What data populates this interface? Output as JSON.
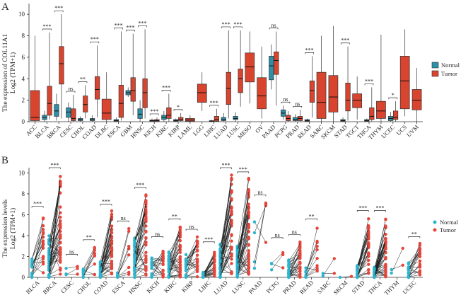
{
  "colors": {
    "normal": "#2e8fa6",
    "tumor": "#d9442f",
    "normal_dot": "#2bb5cf",
    "tumor_dot": "#e5453a"
  },
  "chart_data": [
    {
      "panel_label": "A",
      "type": "box",
      "ylabel_line1": "The expression of COL11A1",
      "ylabel_line2": "Log2 (TPM+1)",
      "ylim": [
        0,
        11
      ],
      "yticks": [
        0,
        2,
        4,
        6,
        8,
        10
      ],
      "legend": {
        "position": "right",
        "entries": [
          "Normal",
          "Tumor"
        ]
      },
      "categories": [
        {
          "name": "ACC",
          "sig": "",
          "t": [
            0,
            0.1,
            0.4,
            2.9,
            8.0
          ]
        },
        {
          "name": "BLCA",
          "sig": "***",
          "n": [
            0,
            0.2,
            0.4,
            0.6,
            1.0
          ],
          "t": [
            0.2,
            0.6,
            1.7,
            3.3,
            8.3
          ]
        },
        {
          "name": "BRCA",
          "sig": "***",
          "n": [
            0.1,
            0.5,
            1.0,
            1.6,
            2.6
          ],
          "t": [
            0.3,
            3.5,
            5.4,
            7.0,
            10.0
          ]
        },
        {
          "name": "CESC",
          "sig": "ns",
          "n": [
            0,
            0.4,
            0.9,
            1.3,
            1.8
          ],
          "t": [
            0,
            0.1,
            0.3,
            1.2,
            2.5
          ]
        },
        {
          "name": "CHOL",
          "sig": "**",
          "n": [
            0,
            0.1,
            0.2,
            0.3,
            0.5
          ],
          "t": [
            0.3,
            0.9,
            1.6,
            2.4,
            3.4
          ]
        },
        {
          "name": "COAD",
          "sig": "***",
          "n": [
            0,
            0.1,
            0.2,
            0.3,
            0.6
          ],
          "t": [
            0.4,
            2.1,
            3.0,
            4.2,
            7.1
          ]
        },
        {
          "name": "DLBC",
          "sig": "",
          "t": [
            0,
            0.2,
            0.8,
            2.1,
            4.6
          ]
        },
        {
          "name": "ESCA",
          "sig": "***",
          "n": [
            0,
            0.05,
            0.1,
            0.2,
            0.4
          ],
          "t": [
            0.1,
            0.4,
            1.7,
            3.4,
            8.4
          ]
        },
        {
          "name": "GBM",
          "sig": "***",
          "n": [
            2.3,
            2.5,
            2.7,
            2.9,
            3.2
          ],
          "t": [
            0.6,
            1.9,
            2.9,
            4.1,
            8.2
          ]
        },
        {
          "name": "HNSC",
          "sig": "***",
          "n": [
            0,
            0.3,
            0.7,
            1.2,
            2.0
          ],
          "t": [
            0.3,
            1.3,
            2.7,
            4.0,
            8.6
          ]
        },
        {
          "name": "KICH",
          "sig": "***",
          "n": [
            0,
            0.05,
            0.1,
            0.15,
            0.3
          ],
          "t": [
            0,
            0.05,
            0.1,
            0.2,
            0.4
          ]
        },
        {
          "name": "KIRC",
          "sig": "***",
          "n": [
            0,
            0.2,
            0.4,
            0.6,
            1.0
          ],
          "t": [
            0,
            0.3,
            0.6,
            1.3,
            2.6
          ]
        },
        {
          "name": "KIRP",
          "sig": "*",
          "n": [
            0,
            0.05,
            0.1,
            0.2,
            0.3
          ],
          "t": [
            0,
            0.1,
            0.2,
            0.4,
            0.8
          ]
        },
        {
          "name": "LAML",
          "sig": "",
          "t": [
            0,
            0.05,
            0.15,
            0.3,
            0.6
          ]
        },
        {
          "name": "LGG",
          "sig": "",
          "t": [
            1.0,
            1.8,
            2.7,
            3.5,
            4.6
          ]
        },
        {
          "name": "LIHC",
          "sig": "***",
          "n": [
            0,
            0.02,
            0.05,
            0.1,
            0.2
          ],
          "t": [
            0,
            0.05,
            0.2,
            0.5,
            1.2
          ]
        },
        {
          "name": "LUAD",
          "sig": "***",
          "n": [
            0,
            0.1,
            0.2,
            0.4,
            0.8
          ],
          "t": [
            0.3,
            1.6,
            3.1,
            4.6,
            8.5
          ]
        },
        {
          "name": "LUSC",
          "sig": "***",
          "n": [
            0,
            0.2,
            0.3,
            0.5,
            0.9
          ],
          "t": [
            1.4,
            2.7,
            4.0,
            4.9,
            8.5
          ]
        },
        {
          "name": "MESO",
          "sig": "",
          "t": [
            1.7,
            3.7,
            5.1,
            6.4,
            8.4
          ]
        },
        {
          "name": "OV",
          "sig": "",
          "t": [
            0.3,
            1.2,
            2.4,
            4.1,
            7.0
          ]
        },
        {
          "name": "PAAD",
          "sig": "ns",
          "n": [
            3.0,
            3.9,
            5.2,
            6.1,
            7.2
          ],
          "t": [
            1.5,
            4.4,
            5.7,
            6.5,
            8.4
          ]
        },
        {
          "name": "PCPG",
          "sig": "ns",
          "n": [
            0.2,
            0.5,
            0.8,
            1.1,
            1.5
          ],
          "t": [
            0,
            0.1,
            0.3,
            0.6,
            1.0
          ]
        },
        {
          "name": "PRAD",
          "sig": "ns",
          "n": [
            0,
            0.1,
            0.2,
            0.4,
            0.7
          ],
          "t": [
            0,
            0.1,
            0.3,
            0.5,
            1.1
          ]
        },
        {
          "name": "READ",
          "sig": "***",
          "n": [
            0,
            0.05,
            0.1,
            0.2,
            0.3
          ],
          "t": [
            0.4,
            1.8,
            2.9,
            3.8,
            6.1
          ]
        },
        {
          "name": "SARC",
          "sig": "",
          "t": [
            0,
            0.3,
            1.8,
            4.6,
            8.0
          ]
        },
        {
          "name": "SKCM",
          "sig": "",
          "t": [
            0,
            0.9,
            2.3,
            4.3,
            8.9
          ]
        },
        {
          "name": "STAD",
          "sig": "***",
          "n": [
            0,
            0.05,
            0.1,
            0.2,
            0.4
          ],
          "t": [
            0.1,
            1.0,
            2.0,
            3.6,
            7.0
          ]
        },
        {
          "name": "TGCT",
          "sig": "",
          "t": [
            0.2,
            1.3,
            2.0,
            2.6,
            4.2
          ]
        },
        {
          "name": "THCA",
          "sig": "***",
          "n": [
            0,
            0.05,
            0.1,
            0.2,
            0.3
          ],
          "t": [
            0,
            0.2,
            0.5,
            1.3,
            3.2
          ]
        },
        {
          "name": "THYM",
          "sig": "",
          "t": [
            0,
            0.3,
            1.0,
            1.9,
            8.1
          ]
        },
        {
          "name": "UCEC",
          "sig": "*",
          "n": [
            0,
            0.1,
            0.3,
            0.5,
            0.9
          ],
          "t": [
            0,
            0.2,
            0.4,
            1.0,
            1.9
          ]
        },
        {
          "name": "UCS",
          "sig": "",
          "t": [
            0.5,
            1.2,
            3.8,
            6.1,
            8.6
          ]
        },
        {
          "name": "UVM",
          "sig": "",
          "t": [
            0,
            1.1,
            2.0,
            3.0,
            5.0
          ]
        }
      ]
    },
    {
      "panel_label": "B",
      "type": "paired_scatter",
      "ylabel_line1": "The expression levels",
      "ylabel_line2": "Log2 (TPM+1)",
      "ylim": [
        0,
        10.5
      ],
      "yticks": [
        0,
        2,
        4,
        6,
        8,
        10
      ],
      "legend": {
        "position": "right",
        "entries": [
          "Normal",
          "Tumor"
        ]
      },
      "categories": [
        {
          "name": "BLCA",
          "sig": "***",
          "count": 18,
          "n": [
            0,
            0.5,
            2.0
          ],
          "t": [
            0.2,
            2.0,
            6.2
          ]
        },
        {
          "name": "BRCA",
          "sig": "***",
          "count": 45,
          "n": [
            0,
            1.5,
            4.0
          ],
          "t": [
            0.3,
            4.8,
            10.0
          ]
        },
        {
          "name": "CESC",
          "sig": "ns",
          "count": 3,
          "n": [
            0.1,
            0.8,
            2.0
          ],
          "t": [
            0,
            0.5,
            1.6
          ]
        },
        {
          "name": "CHOL",
          "sig": "**",
          "count": 9,
          "n": [
            0,
            0.3,
            0.8
          ],
          "t": [
            0.2,
            1.5,
            3.0
          ]
        },
        {
          "name": "COAD",
          "sig": "***",
          "count": 40,
          "n": [
            0,
            0.3,
            1.5
          ],
          "t": [
            0.3,
            3.2,
            6.4
          ]
        },
        {
          "name": "ESCA",
          "sig": "ns",
          "count": 8,
          "n": [
            0,
            0.2,
            0.6
          ],
          "t": [
            0,
            0.2,
            4.8
          ]
        },
        {
          "name": "HNSC",
          "sig": "***",
          "count": 40,
          "n": [
            0,
            1.2,
            3.8
          ],
          "t": [
            0.2,
            3.0,
            8.0
          ]
        },
        {
          "name": "KICH",
          "sig": "ns",
          "count": 20,
          "n": [
            0,
            0.6,
            2.0
          ],
          "t": [
            0,
            0.4,
            3.3
          ]
        },
        {
          "name": "KIRC",
          "sig": "**",
          "count": 35,
          "n": [
            0,
            0.8,
            2.6
          ],
          "t": [
            0,
            1.4,
            5.0
          ]
        },
        {
          "name": "KIRP",
          "sig": "ns",
          "count": 25,
          "n": [
            0,
            0.5,
            2.2
          ],
          "t": [
            0,
            0.8,
            4.0
          ]
        },
        {
          "name": "LIHC",
          "sig": "***",
          "count": 30,
          "n": [
            0,
            0.1,
            0.5
          ],
          "t": [
            0,
            0.8,
            2.8
          ]
        },
        {
          "name": "LUAD",
          "sig": "***",
          "count": 45,
          "n": [
            0,
            1.0,
            3.2
          ],
          "t": [
            0.2,
            4.0,
            10.0
          ]
        },
        {
          "name": "LUSC",
          "sig": "***",
          "count": 45,
          "n": [
            0,
            1.0,
            3.0
          ],
          "t": [
            0.3,
            4.2,
            9.5
          ]
        },
        {
          "name": "PAAD",
          "sig": "ns",
          "count": 4,
          "n": [
            0.2,
            5.0,
            6.8
          ],
          "t": [
            1.0,
            6.5,
            7.3
          ]
        },
        {
          "name": "PCPG",
          "sig": "ns",
          "count": 3,
          "n": [
            0.2,
            0.8,
            1.5
          ],
          "t": [
            0.5,
            1.5,
            3.2
          ]
        },
        {
          "name": "PRAD",
          "sig": "ns",
          "count": 30,
          "n": [
            0,
            0.4,
            1.8
          ],
          "t": [
            0,
            0.6,
            3.5
          ]
        },
        {
          "name": "READ",
          "sig": "**",
          "count": 10,
          "n": [
            0,
            0.3,
            1.0
          ],
          "t": [
            0.5,
            2.5,
            5.0
          ]
        },
        {
          "name": "SARC",
          "sig": "",
          "count": 2,
          "n": [
            0,
            0.2,
            0.4
          ],
          "t": [
            0,
            1.5,
            3.0
          ]
        },
        {
          "name": "SKCM",
          "sig": "",
          "count": 1,
          "n": [
            0,
            0,
            0.1
          ],
          "t": [
            0,
            0,
            0.1
          ]
        },
        {
          "name": "STAD",
          "sig": "***",
          "count": 32,
          "n": [
            0,
            0.3,
            1.2
          ],
          "t": [
            0.3,
            2.2,
            5.8
          ]
        },
        {
          "name": "THCA",
          "sig": "***",
          "count": 45,
          "n": [
            0,
            0.2,
            1.0
          ],
          "t": [
            0,
            1.2,
            5.8
          ]
        },
        {
          "name": "THYM",
          "sig": "",
          "count": 2,
          "n": [
            0,
            0.8,
            1.5
          ],
          "t": [
            0.4,
            2.0,
            3.7
          ]
        },
        {
          "name": "UCEC",
          "sig": "**",
          "count": 22,
          "n": [
            0,
            0.5,
            1.6
          ],
          "t": [
            0,
            1.2,
            3.3
          ]
        }
      ]
    }
  ]
}
